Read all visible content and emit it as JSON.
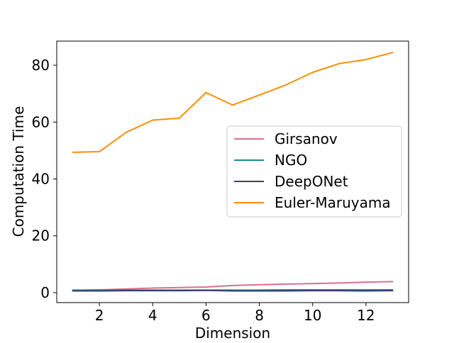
{
  "chart_data": {
    "type": "line",
    "title": "",
    "xlabel": "Dimension",
    "ylabel": "Computation Time",
    "xlim": [
      0.4,
      13.6
    ],
    "ylim": [
      -3.5,
      88.5
    ],
    "xticks": [
      2,
      4,
      6,
      8,
      10,
      12
    ],
    "yticks": [
      0,
      20,
      40,
      60,
      80
    ],
    "grid": false,
    "legend_position": "center-right",
    "x": [
      1,
      2,
      3,
      4,
      5,
      6,
      7,
      8,
      9,
      10,
      11,
      12,
      13
    ],
    "series": [
      {
        "name": "Girsanov",
        "color": "#d9708f",
        "values": [
          0.8,
          1.0,
          1.3,
          1.6,
          1.8,
          2.0,
          2.5,
          2.8,
          3.0,
          3.2,
          3.4,
          3.7,
          3.9
        ]
      },
      {
        "name": "NGO",
        "color": "#1a8a8c",
        "values": [
          0.9,
          0.9,
          0.9,
          0.9,
          0.9,
          0.9,
          0.9,
          0.9,
          1.0,
          1.0,
          1.0,
          1.0,
          1.0
        ]
      },
      {
        "name": "DeepONet",
        "color": "#3b3a78",
        "values": [
          0.6,
          0.6,
          0.7,
          0.7,
          0.7,
          0.8,
          0.6,
          0.6,
          0.6,
          0.7,
          0.7,
          0.6,
          0.7
        ]
      },
      {
        "name": "Euler-Maruyama",
        "color": "#ff8c00",
        "values": [
          49.4,
          49.6,
          56.4,
          60.7,
          61.4,
          70.4,
          66.0,
          69.5,
          73.1,
          77.5,
          80.6,
          82.0,
          84.5
        ]
      }
    ]
  }
}
